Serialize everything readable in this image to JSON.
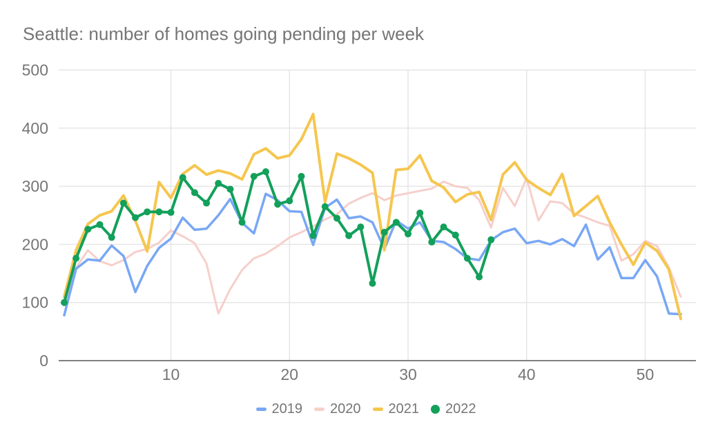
{
  "title": "Seattle: number of homes going pending per week",
  "colors": {
    "grid": "#e6e6e6",
    "axis": "#808080",
    "label_text": "#757575",
    "title_text": "#757575",
    "background": "#ffffff"
  },
  "chart_data": {
    "type": "line",
    "title": "Seattle: number of homes going pending per week",
    "xlabel": "",
    "ylabel": "",
    "x_unit": "week of year",
    "xlim": [
      1,
      53
    ],
    "ylim": [
      0,
      500
    ],
    "x_ticks": [
      10,
      20,
      30,
      40,
      50
    ],
    "y_ticks": [
      0,
      100,
      200,
      300,
      400,
      500
    ],
    "grid": true,
    "legend_position": "bottom",
    "draw_order": [
      1,
      0,
      2,
      3
    ],
    "series": [
      {
        "name": "2019",
        "color": "#78a7f5",
        "marker": "none",
        "line_width": 3.5,
        "x_start": 1,
        "values": [
          78,
          158,
          174,
          172,
          198,
          180,
          118,
          163,
          194,
          210,
          246,
          225,
          227,
          250,
          278,
          237,
          219,
          287,
          276,
          257,
          256,
          199,
          263,
          277,
          245,
          248,
          238,
          192,
          241,
          227,
          238,
          206,
          204,
          192,
          176,
          173,
          207,
          221,
          227,
          202,
          206,
          200,
          209,
          197,
          234,
          174,
          195,
          142,
          142,
          173,
          145,
          81,
          80
        ]
      },
      {
        "name": "2020",
        "color": "#f6cfca",
        "marker": "none",
        "line_width": 3,
        "x_start": 1,
        "values": [
          95,
          160,
          190,
          171,
          164,
          173,
          187,
          192,
          203,
          224,
          214,
          202,
          167,
          81,
          123,
          156,
          176,
          184,
          197,
          212,
          221,
          231,
          243,
          252,
          270,
          280,
          288,
          276,
          284,
          288,
          292,
          296,
          308,
          300,
          297,
          276,
          229,
          297,
          266,
          314,
          241,
          274,
          271,
          253,
          246,
          238,
          232,
          172,
          183,
          206,
          197,
          160,
          110
        ]
      },
      {
        "name": "2021",
        "color": "#f5c64f",
        "marker": "none",
        "line_width": 4,
        "x_start": 1,
        "values": [
          110,
          190,
          235,
          250,
          257,
          284,
          241,
          188,
          307,
          280,
          321,
          336,
          320,
          327,
          322,
          312,
          355,
          365,
          348,
          353,
          381,
          424,
          273,
          356,
          348,
          337,
          323,
          190,
          328,
          330,
          353,
          309,
          298,
          273,
          286,
          290,
          242,
          320,
          341,
          311,
          297,
          285,
          321,
          249,
          266,
          283,
          238,
          200,
          165,
          203,
          189,
          157,
          72
        ]
      },
      {
        "name": "2022",
        "color": "#12a05a",
        "marker": "circle",
        "marker_radius": 5,
        "line_width": 4,
        "x_start": 1,
        "values": [
          100,
          176,
          226,
          234,
          212,
          271,
          246,
          256,
          256,
          255,
          315,
          289,
          271,
          305,
          295,
          238,
          317,
          325,
          269,
          275,
          317,
          215,
          265,
          245,
          215,
          230,
          133,
          221,
          238,
          218,
          254,
          204,
          230,
          216,
          176,
          144,
          208
        ]
      }
    ]
  }
}
